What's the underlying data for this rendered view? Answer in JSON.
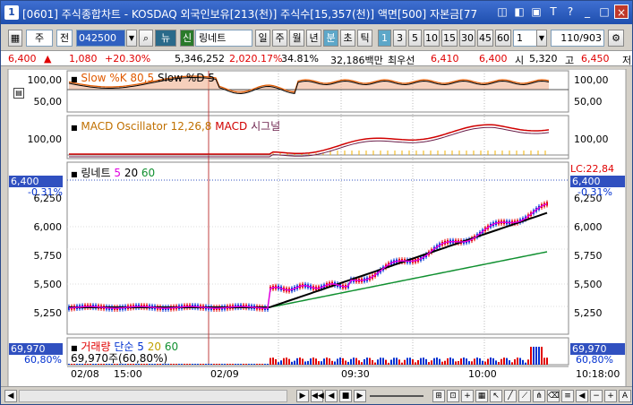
{
  "title": {
    "screen_id": "[0601]",
    "text": "주식종합차트 - KOSDAQ 외국인보유[213(천)] 주식수[15,357(천)] 액면[500] 자본금[77"
  },
  "toolbar": {
    "market": "주",
    "scope": "전",
    "code": "042500",
    "view": "뉴",
    "new_tag": "신",
    "stock_name": "링네트",
    "period_buttons": [
      "일",
      "주",
      "월",
      "년",
      "분",
      "초",
      "틱"
    ],
    "active_period": "분",
    "interval_buttons": [
      "1",
      "3",
      "5",
      "10",
      "15",
      "30",
      "45",
      "60"
    ],
    "active_interval": "1",
    "interval_select": "1",
    "page_count": "110/903"
  },
  "quote": {
    "price": "6,400",
    "change": "1,080",
    "change_pct": "+20.30%",
    "volume": "5,346,252",
    "volume_pct": "2,020.17%",
    "turnover": "34.81%",
    "amount": "32,186백만",
    "priority_label": "최우선",
    "priority_price": "6,410",
    "bid_price": "6,400",
    "open_label": "시",
    "open_price": "5,320",
    "high_label": "고",
    "high_price": "6,450",
    "extra_label": "저"
  },
  "stochastic": {
    "label": "Slow %K 80,5",
    "label2": "Slow %D 5",
    "ticks": [
      "100,00",
      "50,00"
    ]
  },
  "macd": {
    "label": "MACD Oscillator 12,26,8",
    "label2": "MACD",
    "label3": "시그널",
    "ticks": [
      "100,00"
    ]
  },
  "price_panel": {
    "stock_label": "링네트",
    "ma_labels": [
      "5",
      "20",
      "60"
    ],
    "current_price_tag": "6,400",
    "current_pct_tag": "-0.31%",
    "right_price_tag": "6,400",
    "right_pct_tag": "-0.31%",
    "lc_label": "LC:22,84",
    "ticks": [
      "6,250",
      "6,000",
      "5,750",
      "5,500",
      "5,250"
    ]
  },
  "volume_panel": {
    "label": "거래량",
    "ma_type": "단순",
    "ma_labels": [
      "5",
      "20",
      "60"
    ],
    "value_line": "69,970주(60,80%)",
    "left_tag": "69,970",
    "left_pct": "60,80%",
    "right_tag": "69,970",
    "right_pct": "60,80%"
  },
  "time_axis": {
    "labels": [
      "02/08",
      "15:00",
      "02/09",
      "09:30",
      "10:00",
      "10:18:00"
    ]
  },
  "colors": {
    "title_bar": "#1f4fae",
    "stoch_k": "#e05a00",
    "stoch_d": "#000000",
    "macd_osc": "#f0b000",
    "macd_line": "#d00000",
    "macd_signal": "#6a1e4a",
    "ma5": "#e000e0",
    "ma20": "#000000",
    "ma60": "#109030",
    "up": "#e00000",
    "down": "#0030d0"
  }
}
